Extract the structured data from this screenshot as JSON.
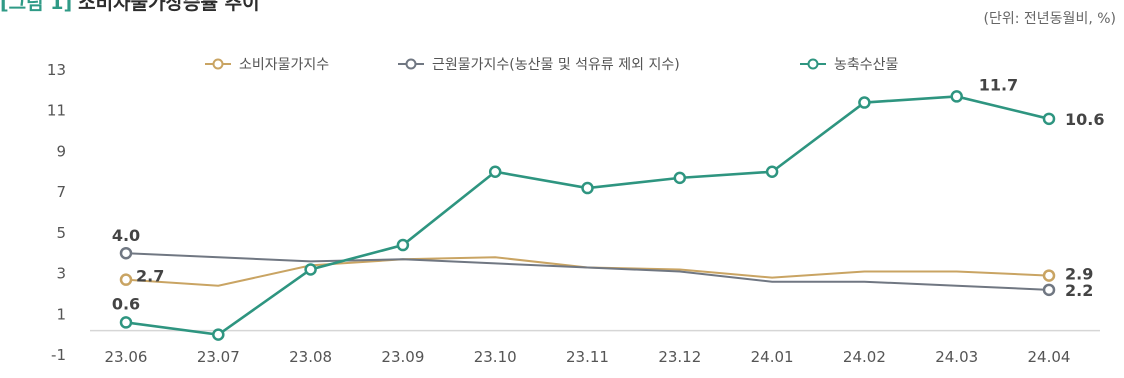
{
  "header": {
    "figure_label": "[그림 1]",
    "title": "소비자물가상승률 추이",
    "unit_note": "(단위: 전년동월비, %)"
  },
  "chart_data": {
    "type": "line",
    "title": "소비자물가상승률 추이",
    "xlabel": "",
    "ylabel": "",
    "categories": [
      "23.06",
      "23.07",
      "23.08",
      "23.09",
      "23.10",
      "23.11",
      "23.12",
      "24.01",
      "24.02",
      "24.03",
      "24.04"
    ],
    "yticks": [
      -1,
      1,
      3,
      5,
      7,
      9,
      11,
      13
    ],
    "ylim": [
      -1,
      13
    ],
    "grid": false,
    "legend_position": "top",
    "series": [
      {
        "name": "소비자물가지수",
        "color": "#c9a463",
        "values": [
          2.7,
          2.4,
          3.4,
          3.7,
          3.8,
          3.3,
          3.2,
          2.8,
          3.1,
          3.1,
          2.9
        ],
        "labels": [
          {
            "index": 0,
            "text": "2.7"
          },
          {
            "index": 10,
            "text": "2.9"
          }
        ]
      },
      {
        "name": "근원물가지수(농산물 및 석유류 제외 지수)",
        "color": "#707782",
        "values": [
          4.0,
          3.8,
          3.6,
          3.7,
          3.5,
          3.3,
          3.1,
          2.6,
          2.6,
          2.4,
          2.2
        ],
        "labels": [
          {
            "index": 0,
            "text": "4.0"
          },
          {
            "index": 10,
            "text": "2.2"
          }
        ]
      },
      {
        "name": "농축수산물",
        "color": "#2e9580",
        "values": [
          0.6,
          0.0,
          3.2,
          4.4,
          8.0,
          7.2,
          7.7,
          8.0,
          11.4,
          11.7,
          10.6
        ],
        "labels": [
          {
            "index": 0,
            "text": "0.6"
          },
          {
            "index": 9,
            "text": "11.7"
          },
          {
            "index": 10,
            "text": "10.6"
          }
        ]
      }
    ]
  }
}
